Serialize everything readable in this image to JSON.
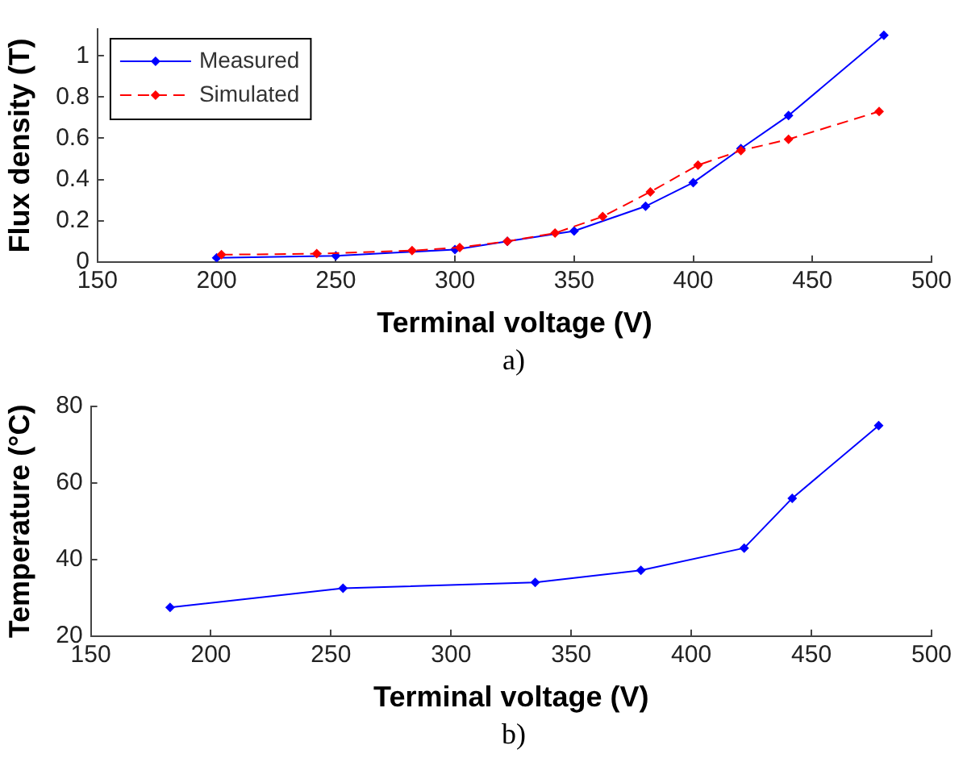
{
  "chart_data": [
    {
      "type": "line",
      "xlabel": "Terminal voltage (V)",
      "ylabel": "Flux density (T)",
      "annotations": [
        "a)"
      ],
      "xlim": [
        150,
        500
      ],
      "xticks": [
        150,
        200,
        250,
        300,
        350,
        400,
        450,
        500
      ],
      "ylim": [
        0,
        1.13
      ],
      "yticks": [
        0,
        0.2,
        0.4,
        0.6,
        0.8,
        1
      ],
      "legend": "top left",
      "marker": "diamond",
      "grid": false,
      "series": [
        {
          "name": "Measured",
          "color": "#0000ff",
          "line_style": "solid",
          "x": [
            200,
            250,
            300,
            322,
            350,
            380,
            400,
            420,
            440,
            480
          ],
          "values": [
            0.02,
            0.03,
            0.06,
            0.1,
            0.15,
            0.27,
            0.385,
            0.55,
            0.71,
            1.1
          ]
        },
        {
          "name": "Simulated",
          "color": "#ff0000",
          "line_style": "dashed",
          "x": [
            202,
            242,
            282,
            302,
            322,
            342,
            362,
            382,
            402,
            420,
            440,
            478
          ],
          "values": [
            0.035,
            0.04,
            0.055,
            0.07,
            0.1,
            0.14,
            0.22,
            0.34,
            0.47,
            0.54,
            0.595,
            0.73
          ]
        }
      ]
    },
    {
      "type": "line",
      "xlabel": "Terminal voltage (V)",
      "ylabel": "Temperature (°C)",
      "annotations": [
        "b)"
      ],
      "xlim": [
        150,
        500
      ],
      "xticks": [
        150,
        200,
        250,
        300,
        350,
        400,
        450,
        500
      ],
      "ylim": [
        20,
        80
      ],
      "yticks": [
        20,
        40,
        60,
        80
      ],
      "legend": false,
      "marker": "diamond",
      "grid": false,
      "series": [
        {
          "color": "#0000ff",
          "line_style": "solid",
          "x": [
            183,
            255,
            335,
            379,
            422,
            442,
            478
          ],
          "values": [
            27.5,
            32.5,
            34,
            37.2,
            43,
            56,
            75
          ]
        }
      ]
    }
  ]
}
